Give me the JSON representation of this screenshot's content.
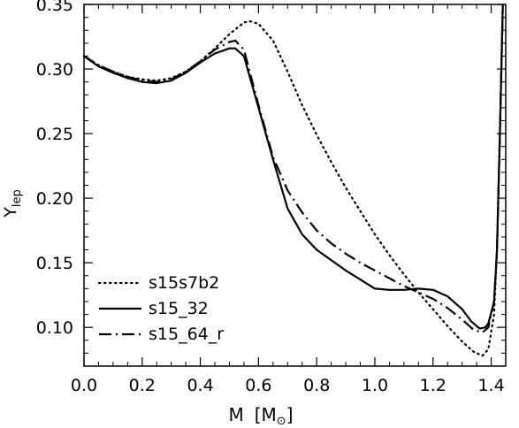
{
  "chart_data": {
    "type": "line",
    "xlabel": {
      "main": "M",
      "unit_open": "[M",
      "unit_close": "]",
      "unit_symbol": "sun"
    },
    "ylabel": {
      "main": "Y",
      "sub": "lep"
    },
    "xlim": [
      0.0,
      1.45
    ],
    "ylim": [
      0.07,
      0.35
    ],
    "xticks": [
      0.0,
      0.2,
      0.4,
      0.6,
      0.8,
      1.0,
      1.2,
      1.4
    ],
    "xtick_labels": [
      "0.0",
      "0.2",
      "0.4",
      "0.6",
      "0.8",
      "1.0",
      "1.2",
      "1.4"
    ],
    "yticks": [
      0.1,
      0.15,
      0.2,
      0.25,
      0.3,
      0.35
    ],
    "ytick_labels": [
      "0.10",
      "0.15",
      "0.20",
      "0.25",
      "0.30",
      "0.35"
    ],
    "grid": false,
    "legend_position": "bottom-left",
    "series": [
      {
        "name": "s15s7b2",
        "style": "dotted",
        "x": [
          0.0,
          0.05,
          0.1,
          0.15,
          0.2,
          0.25,
          0.3,
          0.35,
          0.4,
          0.45,
          0.5,
          0.55,
          0.57,
          0.6,
          0.65,
          0.7,
          0.75,
          0.8,
          0.85,
          0.9,
          0.95,
          1.0,
          1.05,
          1.1,
          1.15,
          1.2,
          1.25,
          1.3,
          1.34,
          1.37,
          1.39,
          1.41,
          1.42,
          1.43,
          1.44
        ],
        "y": [
          0.31,
          0.303,
          0.298,
          0.294,
          0.292,
          0.291,
          0.293,
          0.298,
          0.306,
          0.316,
          0.327,
          0.336,
          0.337,
          0.335,
          0.322,
          0.298,
          0.272,
          0.249,
          0.228,
          0.208,
          0.19,
          0.172,
          0.156,
          0.141,
          0.127,
          0.114,
          0.101,
          0.089,
          0.081,
          0.078,
          0.083,
          0.11,
          0.16,
          0.25,
          0.35
        ]
      },
      {
        "name": "s15_32",
        "style": "solid",
        "x": [
          0.0,
          0.05,
          0.1,
          0.15,
          0.2,
          0.25,
          0.3,
          0.35,
          0.4,
          0.45,
          0.5,
          0.52,
          0.55,
          0.6,
          0.65,
          0.7,
          0.75,
          0.8,
          0.85,
          0.9,
          0.95,
          1.0,
          1.05,
          1.1,
          1.15,
          1.2,
          1.25,
          1.3,
          1.33,
          1.36,
          1.38,
          1.39,
          1.41,
          1.42,
          1.43,
          1.44
        ],
        "y": [
          0.31,
          0.302,
          0.297,
          0.293,
          0.29,
          0.289,
          0.291,
          0.297,
          0.305,
          0.312,
          0.316,
          0.316,
          0.31,
          0.27,
          0.23,
          0.192,
          0.172,
          0.16,
          0.152,
          0.144,
          0.137,
          0.13,
          0.129,
          0.129,
          0.13,
          0.129,
          0.124,
          0.114,
          0.105,
          0.099,
          0.1,
          0.103,
          0.12,
          0.16,
          0.25,
          0.35
        ]
      },
      {
        "name": "s15_64_r",
        "style": "dashdot",
        "x": [
          0.0,
          0.05,
          0.1,
          0.15,
          0.2,
          0.25,
          0.3,
          0.35,
          0.4,
          0.45,
          0.5,
          0.52,
          0.55,
          0.6,
          0.65,
          0.7,
          0.75,
          0.8,
          0.85,
          0.9,
          0.95,
          1.0,
          1.05,
          1.1,
          1.15,
          1.2,
          1.25,
          1.3,
          1.34,
          1.37,
          1.39,
          1.41,
          1.42,
          1.43,
          1.44
        ],
        "y": [
          0.31,
          0.303,
          0.298,
          0.294,
          0.291,
          0.29,
          0.292,
          0.298,
          0.306,
          0.315,
          0.321,
          0.322,
          0.315,
          0.272,
          0.232,
          0.206,
          0.189,
          0.175,
          0.165,
          0.157,
          0.15,
          0.144,
          0.138,
          0.132,
          0.127,
          0.122,
          0.115,
          0.106,
          0.098,
          0.096,
          0.1,
          0.12,
          0.16,
          0.25,
          0.35
        ]
      }
    ]
  }
}
